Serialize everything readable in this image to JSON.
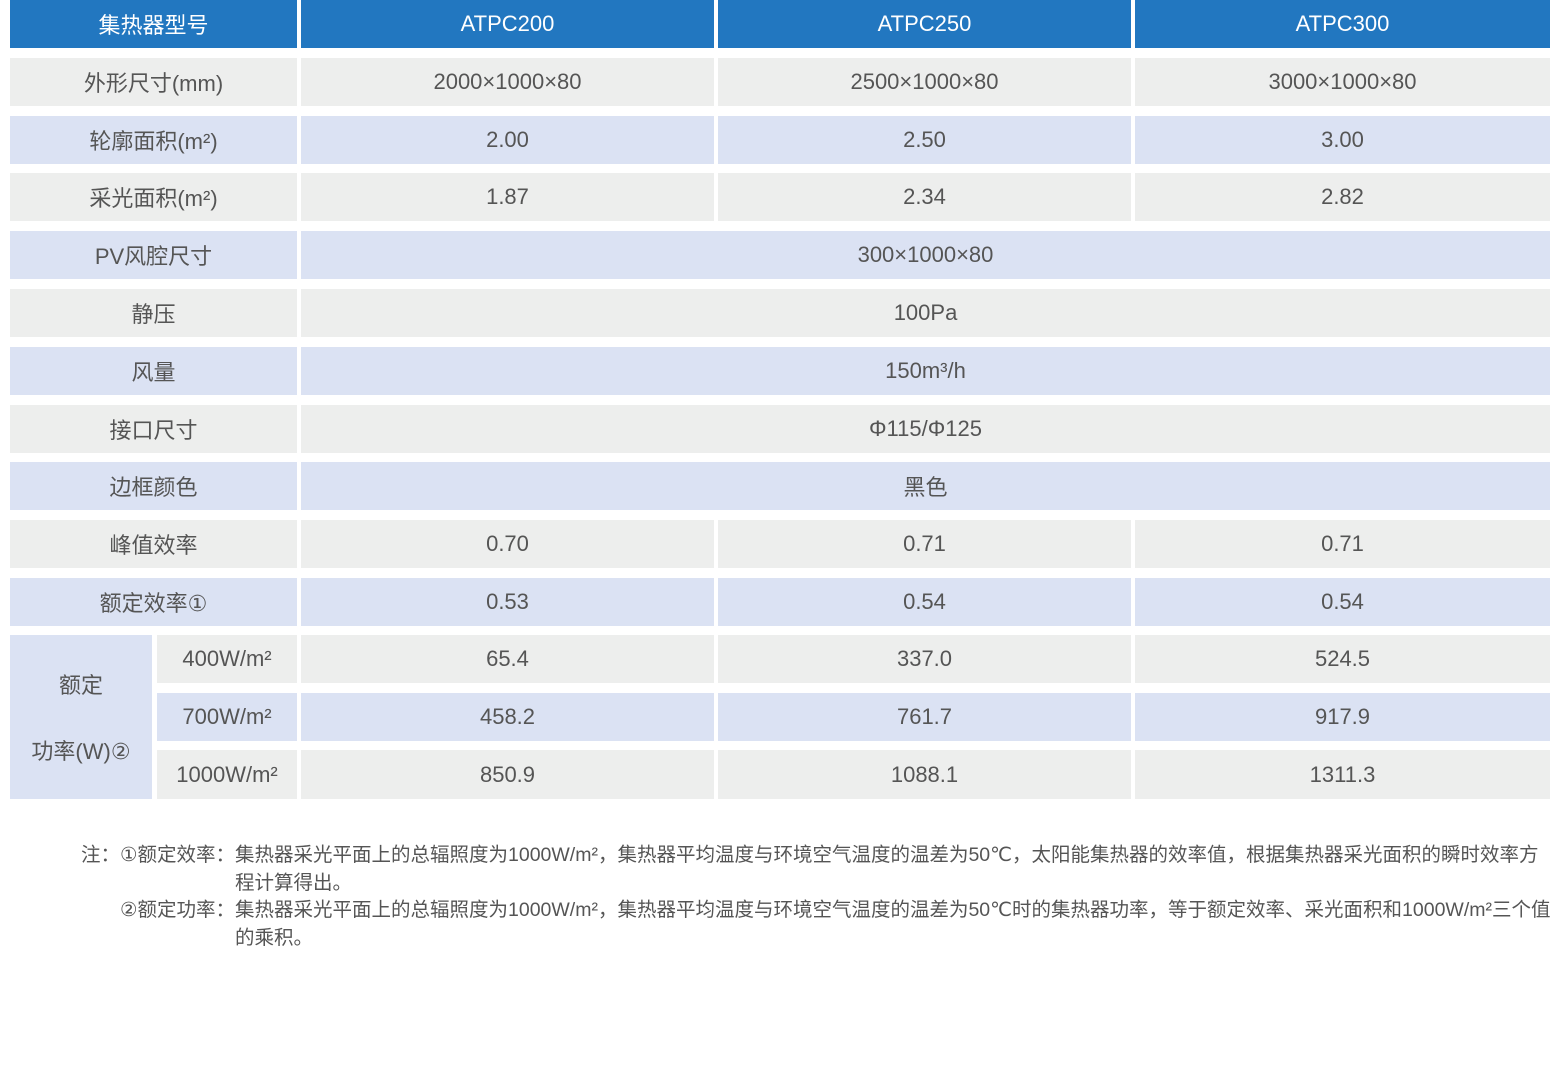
{
  "table": {
    "header": [
      "集热器型号",
      "ATPC200",
      "ATPC250",
      "ATPC300"
    ],
    "rows": [
      {
        "label": "外形尺寸(mm)",
        "values": [
          "2000×1000×80",
          "2500×1000×80",
          "3000×1000×80"
        ]
      },
      {
        "label": "轮廓面积(m²)",
        "values": [
          "2.00",
          "2.50",
          "3.00"
        ]
      },
      {
        "label": "采光面积(m²)",
        "values": [
          "1.87",
          "2.34",
          "2.82"
        ]
      },
      {
        "label": "PV风腔尺寸",
        "values": [
          "300×1000×80"
        ]
      },
      {
        "label": "静压",
        "values": [
          "100Pa"
        ]
      },
      {
        "label": "风量",
        "values": [
          "150m³/h"
        ]
      },
      {
        "label": "接口尺寸",
        "values": [
          "Φ115/Φ125"
        ]
      },
      {
        "label": "边框颜色",
        "values": [
          "黑色"
        ]
      },
      {
        "label": "峰值效率",
        "values": [
          "0.70",
          "0.71",
          "0.71"
        ]
      },
      {
        "label": "额定效率①",
        "values": [
          "0.53",
          "0.54",
          "0.54"
        ]
      }
    ],
    "power_group": {
      "label_line1": "额定",
      "label_line2": "功率(W)②",
      "rows": [
        {
          "label": "400W/m²",
          "values": [
            "65.4",
            "337.0",
            "524.5"
          ]
        },
        {
          "label": "700W/m²",
          "values": [
            "458.2",
            "761.7",
            "917.9"
          ]
        },
        {
          "label": "1000W/m²",
          "values": [
            "850.9",
            "1088.1",
            "1311.3"
          ]
        }
      ]
    }
  },
  "notes": [
    {
      "label": "注：①额定效率：",
      "text": "集热器采光平面上的总辐照度为1000W/m²，集热器平均温度与环境空气温度的温差为50℃，太阳能集热器的效率值，根据集热器采光面积的瞬时效率方程计算得出。"
    },
    {
      "label": "②额定功率：",
      "text": "集热器采光平面上的总辐照度为1000W/m²，集热器平均温度与环境空气温度的温差为50℃时的集热器功率，等于额定效率、采光面积和1000W/m²三个值的乘积。"
    }
  ],
  "colors": {
    "header": "#2277c0",
    "row_gray": "#edeeed",
    "row_blue": "#dbe2f3"
  }
}
